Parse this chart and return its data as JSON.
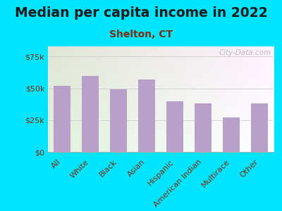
{
  "title": "Median per capita income in 2022",
  "subtitle": "Shelton, CT",
  "categories": [
    "All",
    "White",
    "Black",
    "Asian",
    "Hispanic",
    "American Indian",
    "Multirace",
    "Other"
  ],
  "values": [
    52000,
    60000,
    49000,
    57000,
    40000,
    38000,
    27000,
    38000
  ],
  "bar_color": "#b8a0c8",
  "background_outer": "#00e5ff",
  "background_inner_tl": "#d8f0d0",
  "background_inner_br": "#f8f8f4",
  "title_color": "#1a1a1a",
  "subtitle_color": "#7a3010",
  "tick_label_color": "#7a3010",
  "ytick_labels": [
    "$0",
    "$25k",
    "$50k",
    "$75k"
  ],
  "ytick_values": [
    0,
    25000,
    50000,
    75000
  ],
  "ylim": [
    0,
    83000
  ],
  "watermark": "City-Data.com",
  "title_fontsize": 13.5,
  "subtitle_fontsize": 10,
  "tick_fontsize": 8
}
